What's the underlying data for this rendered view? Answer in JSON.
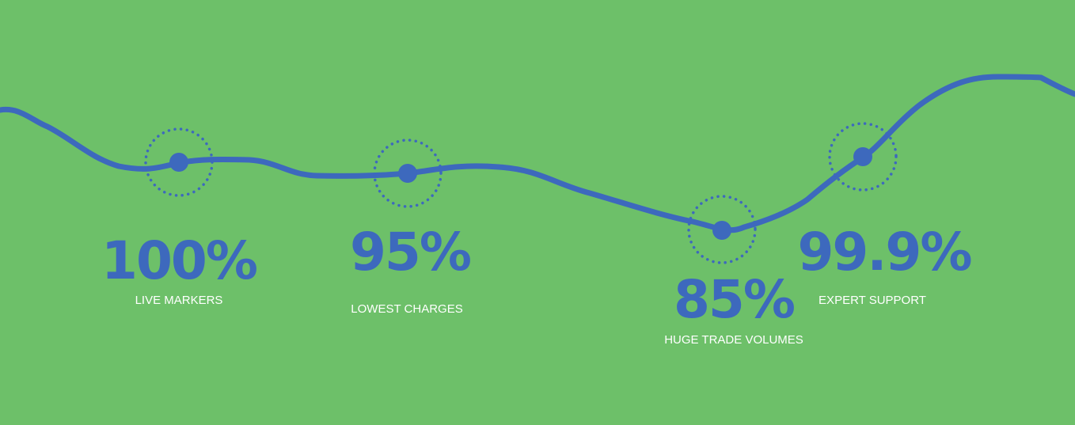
{
  "colors": {
    "background": "#6dc069",
    "accent": "#3d69bd",
    "label": "#ffffff"
  },
  "stats": [
    {
      "value": "100%",
      "label": "LIVE MARKERS"
    },
    {
      "value": "95%",
      "label": "LOWEST CHARGES"
    },
    {
      "value": "85%",
      "label": "HUGE TRADE VOLUMES"
    },
    {
      "value": "99.9%",
      "label": "EXPERT SUPPORT"
    }
  ]
}
